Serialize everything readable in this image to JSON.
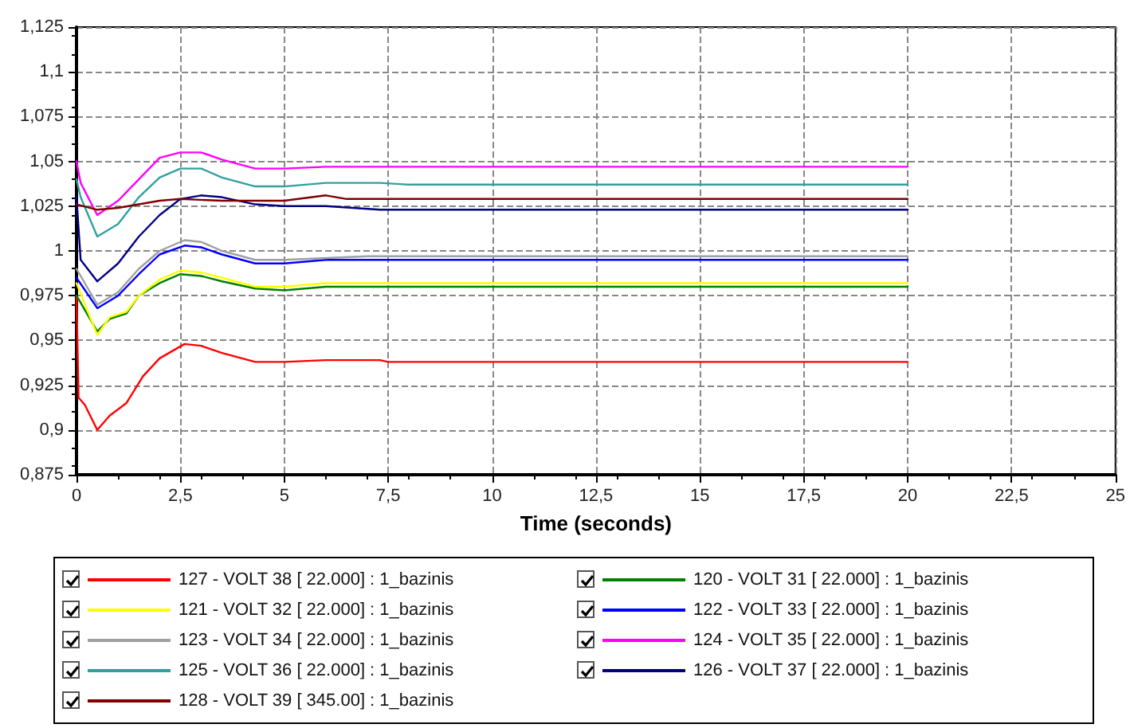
{
  "chart_data": {
    "type": "line",
    "xlabel": "Time (seconds)",
    "xlim": [
      0,
      25
    ],
    "ylim": [
      0.875,
      1.125
    ],
    "xticks": [
      0,
      {
        "value": 2.5,
        "label": "2,5"
      },
      5,
      {
        "value": 7.5,
        "label": "7,5"
      },
      10,
      {
        "value": 12.5,
        "label": "12,5"
      },
      15,
      {
        "value": 17.5,
        "label": "17,5"
      },
      20,
      {
        "value": 22.5,
        "label": "22,5"
      },
      25
    ],
    "yticks": [
      {
        "value": 0.875,
        "label": "0,875"
      },
      {
        "value": 0.9,
        "label": "0,9"
      },
      {
        "value": 0.925,
        "label": "0,925"
      },
      {
        "value": 0.95,
        "label": "0,95"
      },
      {
        "value": 0.975,
        "label": "0,975"
      },
      1,
      {
        "value": 1.025,
        "label": "1,025"
      },
      {
        "value": 1.05,
        "label": "1,05"
      },
      {
        "value": 1.075,
        "label": "1,075"
      },
      {
        "value": 1.1,
        "label": "1,1"
      },
      {
        "value": 1.125,
        "label": "1,125"
      }
    ],
    "grid": true,
    "legend": "bottom",
    "marker": "none",
    "line_style": "solid",
    "series": [
      {
        "name": "127 - VOLT 38 [ 22.000] : 1_bazinis",
        "color": "#ff0000",
        "x": [
          0,
          0.05,
          0.2,
          0.5,
          0.8,
          1.2,
          1.6,
          2.0,
          2.6,
          3.0,
          3.5,
          4.3,
          5,
          6,
          7.3,
          7.5,
          20
        ],
        "values": [
          0.975,
          0.918,
          0.914,
          0.9,
          0.908,
          0.915,
          0.93,
          0.94,
          0.948,
          0.947,
          0.943,
          0.938,
          0.938,
          0.939,
          0.939,
          0.938,
          0.938
        ]
      },
      {
        "name": "120 - VOLT 31 [ 22.000] : 1_bazinis",
        "color": "#008000",
        "x": [
          0,
          0.5,
          0.8,
          1.2,
          1.5,
          2.0,
          2.5,
          3.0,
          3.5,
          4.3,
          5,
          6,
          20
        ],
        "values": [
          0.975,
          0.955,
          0.962,
          0.965,
          0.975,
          0.982,
          0.987,
          0.986,
          0.983,
          0.979,
          0.978,
          0.98,
          0.98
        ]
      },
      {
        "name": "121 - VOLT 32 [ 22.000] : 1_bazinis",
        "color": "#ffff00",
        "x": [
          0,
          0.5,
          0.8,
          1.2,
          1.5,
          2.0,
          2.5,
          3.0,
          3.5,
          4.3,
          5,
          6,
          20
        ],
        "values": [
          0.982,
          0.953,
          0.963,
          0.966,
          0.975,
          0.984,
          0.989,
          0.988,
          0.985,
          0.98,
          0.98,
          0.982,
          0.982
        ]
      },
      {
        "name": "122 - VOLT 33 [ 22.000] : 1_bazinis",
        "color": "#0000ff",
        "x": [
          0,
          0.5,
          1.0,
          1.5,
          2.0,
          2.6,
          3.0,
          3.5,
          4.3,
          5,
          6,
          20
        ],
        "values": [
          0.985,
          0.968,
          0.975,
          0.987,
          0.998,
          1.003,
          1.002,
          0.998,
          0.993,
          0.993,
          0.995,
          0.995
        ]
      },
      {
        "name": "123 - VOLT 34 [ 22.000] : 1_bazinis",
        "color": "#a0a0a0",
        "x": [
          0,
          0.5,
          1.0,
          1.5,
          2.0,
          2.6,
          3.0,
          3.5,
          4.3,
          5,
          6,
          7,
          20
        ],
        "values": [
          0.99,
          0.97,
          0.977,
          0.99,
          1.0,
          1.006,
          1.005,
          1.0,
          0.995,
          0.995,
          0.996,
          0.997,
          0.997
        ]
      },
      {
        "name": "124 - VOLT 35 [ 22.000] : 1_bazinis",
        "color": "#ff00ff",
        "x": [
          0,
          0.1,
          0.5,
          1.0,
          1.5,
          2.0,
          2.5,
          3.0,
          3.5,
          4.3,
          5,
          6,
          20
        ],
        "values": [
          1.05,
          1.038,
          1.02,
          1.028,
          1.04,
          1.052,
          1.055,
          1.055,
          1.051,
          1.046,
          1.046,
          1.047,
          1.047
        ]
      },
      {
        "name": "125 - VOLT 36 [ 22.000] : 1_bazinis",
        "color": "#30a0a0",
        "x": [
          0,
          0.1,
          0.5,
          1.0,
          1.5,
          2.0,
          2.5,
          3.0,
          3.5,
          4.3,
          5,
          6,
          7.3,
          8,
          20
        ],
        "values": [
          1.04,
          1.03,
          1.008,
          1.015,
          1.03,
          1.041,
          1.046,
          1.046,
          1.041,
          1.036,
          1.036,
          1.038,
          1.038,
          1.037,
          1.037
        ]
      },
      {
        "name": "126 - VOLT 37 [ 22.000] : 1_bazinis",
        "color": "#000080",
        "x": [
          0,
          0.1,
          0.5,
          1.0,
          1.5,
          2.0,
          2.5,
          3.0,
          3.5,
          4.3,
          5,
          6,
          7.3,
          20
        ],
        "values": [
          1.03,
          0.995,
          0.983,
          0.993,
          1.008,
          1.02,
          1.029,
          1.031,
          1.03,
          1.026,
          1.025,
          1.025,
          1.023,
          1.023
        ]
      },
      {
        "name": "128 - VOLT 39 [ 345.00] : 1_bazinis",
        "color": "#800000",
        "x": [
          0,
          0.5,
          1.0,
          1.5,
          2.0,
          2.5,
          3.5,
          5,
          6,
          6.5,
          20
        ],
        "values": [
          1.026,
          1.023,
          1.024,
          1.026,
          1.028,
          1.029,
          1.028,
          1.028,
          1.031,
          1.029,
          1.029
        ]
      }
    ]
  }
}
